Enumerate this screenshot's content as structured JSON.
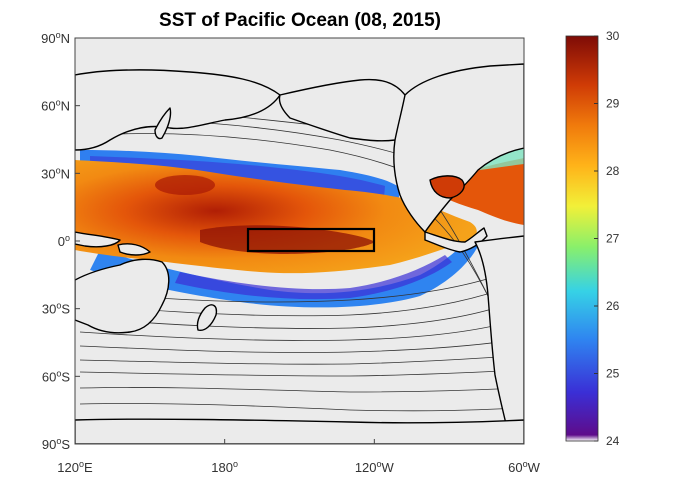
{
  "title": "SST of Pacific Ocean (08, 2015)",
  "map": {
    "ocean_color": "#ebebeb",
    "land_outline_color": "#000000",
    "lon_ticks": [
      "120",
      "180",
      "120",
      "60"
    ],
    "lon_suffix": [
      "E",
      "",
      "W",
      "W"
    ],
    "lat_ticks": [
      "90",
      "60",
      "30",
      "0",
      "30",
      "60",
      "90"
    ],
    "lat_suffix": [
      "N",
      "N",
      "N",
      "",
      "S",
      "S",
      "S"
    ],
    "degree_symbol": "o"
  },
  "colorbar": {
    "min": 24,
    "max": 30,
    "ticks": [
      "30",
      "29",
      "28",
      "27",
      "26",
      "25",
      "24"
    ],
    "colors": [
      "#5e0c8b",
      "#3a2fd6",
      "#2f84f0",
      "#36d2e6",
      "#8af06a",
      "#f2f038",
      "#ffb319",
      "#f07a0c",
      "#cf3b06",
      "#7e0b06"
    ]
  },
  "highlight_box": {
    "label": ""
  }
}
